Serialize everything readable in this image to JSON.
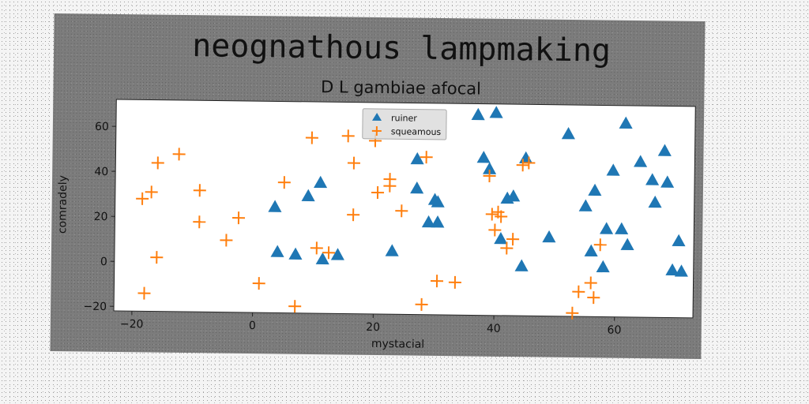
{
  "chart_data": {
    "type": "scatter",
    "title": "neognathous lampmaking",
    "subtitle": "D L gambiae afocal",
    "xlabel": "mystacial",
    "ylabel": "comradely",
    "xlim": [
      -23,
      73
    ],
    "ylim": [
      -22,
      72
    ],
    "x_ticks": [
      -20,
      0,
      20,
      40,
      60
    ],
    "y_ticks": [
      -20,
      0,
      20,
      40,
      60
    ],
    "x_tick_labels": [
      "−20",
      "0",
      "20",
      "40",
      "60"
    ],
    "y_tick_labels": [
      "−20",
      "0",
      "20",
      "40",
      "60"
    ],
    "grid": false,
    "legend_position": "top-center",
    "series": [
      {
        "name": "ruiner",
        "marker": "triangle",
        "color": "#1f77b4",
        "points": [
          [
            3.5,
            25
          ],
          [
            4,
            5
          ],
          [
            7,
            4
          ],
          [
            9,
            30
          ],
          [
            11,
            36
          ],
          [
            11.5,
            2
          ],
          [
            14,
            4
          ],
          [
            23,
            6
          ],
          [
            27,
            47
          ],
          [
            27,
            34
          ],
          [
            29,
            19
          ],
          [
            30,
            29
          ],
          [
            30.5,
            28
          ],
          [
            30.5,
            19
          ],
          [
            37,
            67
          ],
          [
            38,
            48
          ],
          [
            39,
            43
          ],
          [
            40,
            68
          ],
          [
            41,
            12
          ],
          [
            42,
            30
          ],
          [
            43,
            31
          ],
          [
            44.5,
            0
          ],
          [
            45,
            48
          ],
          [
            49,
            13
          ],
          [
            52,
            59
          ],
          [
            55,
            27
          ],
          [
            56,
            7
          ],
          [
            56.5,
            34
          ],
          [
            58,
            0
          ],
          [
            58.5,
            17
          ],
          [
            59.5,
            43
          ],
          [
            61,
            17
          ],
          [
            61.5,
            64
          ],
          [
            62,
            10
          ],
          [
            64,
            47
          ],
          [
            66,
            39
          ],
          [
            66.5,
            29
          ],
          [
            68,
            52
          ],
          [
            68.5,
            38
          ],
          [
            69.5,
            -1
          ],
          [
            70.5,
            12
          ],
          [
            71,
            -1.5
          ]
        ]
      },
      {
        "name": "squeamous",
        "marker": "plus",
        "color": "#ff7f0e",
        "points": [
          [
            -18.5,
            28
          ],
          [
            -18,
            -14
          ],
          [
            -17,
            31
          ],
          [
            -16,
            44
          ],
          [
            -16,
            2
          ],
          [
            -12.5,
            48
          ],
          [
            -9,
            32
          ],
          [
            -9,
            18
          ],
          [
            -4.5,
            10
          ],
          [
            -2.5,
            20
          ],
          [
            1,
            -9
          ],
          [
            5,
            36
          ],
          [
            7,
            -19
          ],
          [
            9.5,
            56
          ],
          [
            10.5,
            7
          ],
          [
            12.5,
            5
          ],
          [
            15.5,
            57
          ],
          [
            16.5,
            45
          ],
          [
            16.5,
            22
          ],
          [
            20,
            55
          ],
          [
            20.5,
            32
          ],
          [
            22.5,
            38
          ],
          [
            22.5,
            35
          ],
          [
            24.5,
            24
          ],
          [
            28,
            -17.5
          ],
          [
            28.5,
            48
          ],
          [
            30.5,
            -7
          ],
          [
            33.5,
            -7.5
          ],
          [
            39,
            40
          ],
          [
            39.5,
            23
          ],
          [
            40,
            16
          ],
          [
            40.5,
            24
          ],
          [
            41,
            22
          ],
          [
            42,
            8
          ],
          [
            43,
            12
          ],
          [
            44.5,
            45
          ],
          [
            45.5,
            46
          ],
          [
            53,
            -20.5
          ],
          [
            54,
            -11
          ],
          [
            56,
            -7
          ],
          [
            56.5,
            -13.5
          ],
          [
            57.5,
            10
          ]
        ]
      }
    ]
  }
}
